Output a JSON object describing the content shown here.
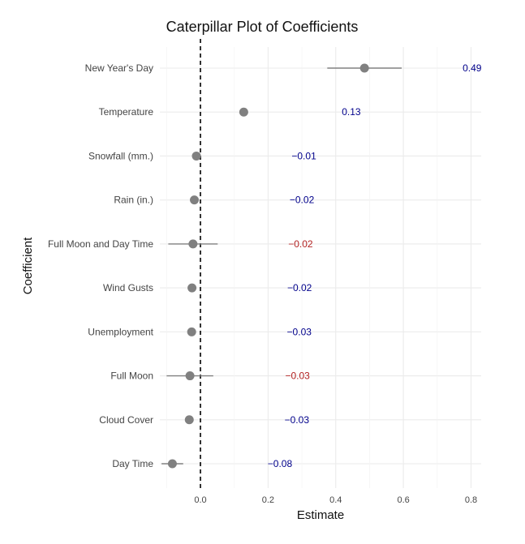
{
  "chart_data": {
    "type": "scatter",
    "title": "Caterpillar Plot of Coefficients",
    "xlabel": "Estimate",
    "ylabel": "Coefficient",
    "xlim": [
      -0.12,
      0.83
    ],
    "xticks": [
      "0.0",
      "0.2",
      "0.4",
      "0.6",
      "0.8"
    ],
    "xtick_values": [
      0.0,
      0.2,
      0.4,
      0.6,
      0.8
    ],
    "grid": true,
    "reference_line": 0,
    "categories": [
      "New Year's Day",
      "Temperature",
      "Snowfall (mm.)",
      "Rain (in.)",
      "Full Moon and Day Time",
      "Wind Gusts",
      "Unemployment",
      "Full Moon",
      "Cloud Cover",
      "Day Time"
    ],
    "estimates": [
      0.485,
      0.128,
      -0.012,
      -0.018,
      -0.022,
      -0.025,
      -0.026,
      -0.031,
      -0.033,
      -0.083
    ],
    "ci_low": [
      0.375,
      0.12,
      -0.02,
      -0.025,
      -0.095,
      -0.03,
      -0.03,
      -0.1,
      -0.038,
      -0.115
    ],
    "ci_high": [
      0.595,
      0.136,
      -0.004,
      -0.011,
      0.051,
      -0.02,
      -0.022,
      0.038,
      -0.028,
      -0.051
    ],
    "labels": [
      "0.49",
      "0.13",
      "−0.01",
      "−0.02",
      "−0.02",
      "−0.02",
      "−0.03",
      "−0.03",
      "−0.03",
      "−0.08"
    ],
    "label_colors": [
      "#00008B",
      "#00008B",
      "#00008B",
      "#00008B",
      "#B22222",
      "#00008B",
      "#00008B",
      "#B22222",
      "#00008B",
      "#00008B"
    ],
    "point_color": "#808080",
    "ci_color": "#808080",
    "reference_color": "#000000"
  }
}
